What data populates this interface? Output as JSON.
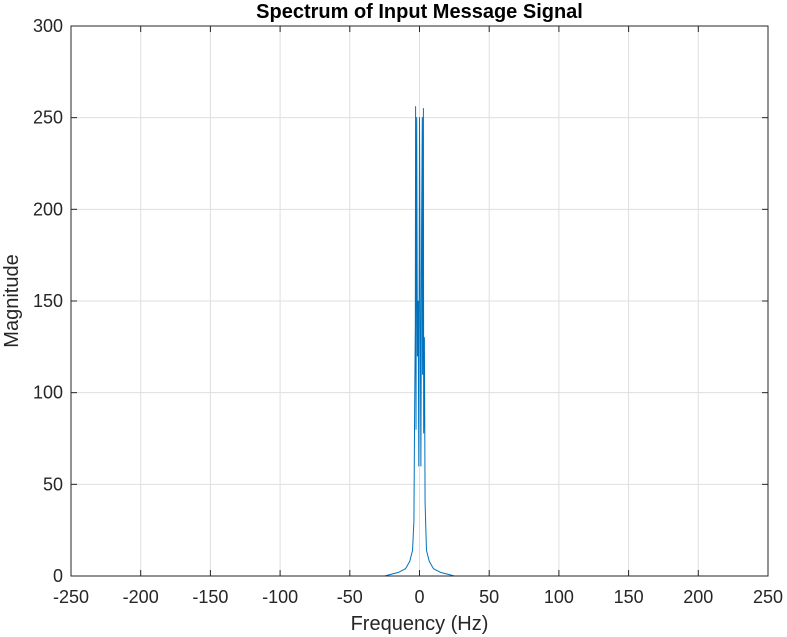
{
  "chart_data": {
    "type": "line",
    "title": "Spectrum of Input Message Signal",
    "xlabel": "Frequency (Hz)",
    "ylabel": "Magnitude",
    "xlim": [
      -250,
      250
    ],
    "ylim": [
      0,
      300
    ],
    "xticks": [
      -250,
      -200,
      -150,
      -100,
      -50,
      0,
      50,
      100,
      150,
      200,
      250
    ],
    "yticks": [
      0,
      50,
      100,
      150,
      200,
      250,
      300
    ],
    "grid": true,
    "series": [
      {
        "color": "#0072BD",
        "x": [
          -250,
          -25,
          -20,
          -15,
          -10,
          -7,
          -5,
          -4,
          -3.5,
          -3,
          -2.8,
          -2.5,
          -2.2,
          -2,
          -1.5,
          -1,
          -0.5,
          0,
          0.5,
          1,
          1.5,
          2,
          2.2,
          2.5,
          2.8,
          3,
          3.5,
          4,
          5,
          7,
          10,
          15,
          20,
          25,
          250
        ],
        "y": [
          0,
          0,
          1,
          2,
          4,
          8,
          14,
          30,
          90,
          138,
          256,
          80,
          190,
          250,
          120,
          150,
          60,
          250,
          150,
          60,
          190,
          250,
          110,
          190,
          255,
          78,
          130,
          40,
          14,
          8,
          4,
          2,
          1,
          0,
          0
        ]
      }
    ]
  },
  "colors": {
    "line": "#0072BD",
    "grid": "#dfdfdf",
    "axis": "#262626"
  }
}
